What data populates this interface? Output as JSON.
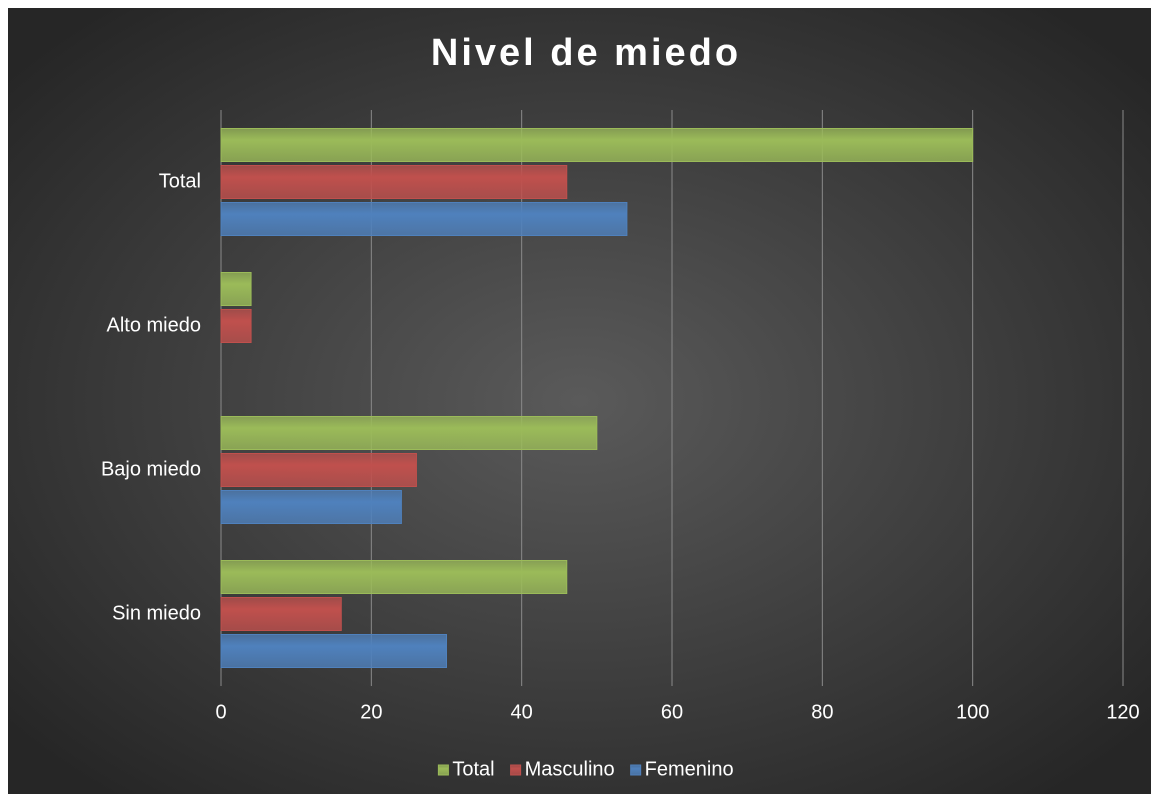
{
  "chart_data": {
    "type": "bar",
    "orientation": "horizontal",
    "title": "Nivel de miedo",
    "categories": [
      "Total",
      "Alto miedo",
      "Bajo miedo",
      "Sin miedo"
    ],
    "series": [
      {
        "name": "Total",
        "color": "#9bbb59",
        "values": [
          100,
          4,
          50,
          46
        ]
      },
      {
        "name": "Masculino",
        "color": "#c0504d",
        "values": [
          46,
          4,
          26,
          16
        ]
      },
      {
        "name": "Femenino",
        "color": "#4f81bd",
        "values": [
          54,
          0,
          24,
          30
        ]
      }
    ],
    "xlim": [
      0,
      120
    ],
    "xticks": [
      0,
      20,
      40,
      60,
      80,
      100,
      120
    ],
    "grid": true,
    "legend": "bottom"
  }
}
